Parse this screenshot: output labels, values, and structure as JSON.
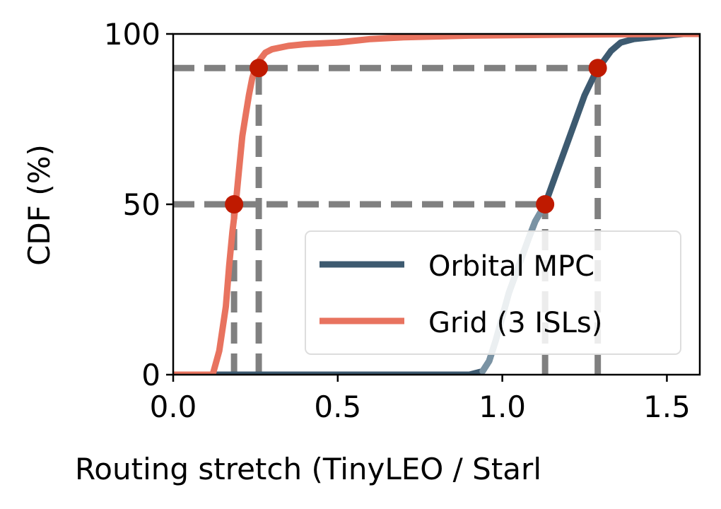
{
  "chart_data": {
    "type": "line",
    "title": "",
    "xlabel": "Routing stretch (TinyLEO / Starl",
    "ylabel": "CDF (%)",
    "xlim": [
      0.0,
      1.6
    ],
    "ylim": [
      0,
      100
    ],
    "xticks": [
      0.0,
      0.5,
      1.0,
      1.5
    ],
    "xtick_labels": [
      "0.0",
      "0.5",
      "1.0",
      "1.5"
    ],
    "yticks": [
      0,
      50,
      100
    ],
    "ytick_labels": [
      "0",
      "50",
      "100"
    ],
    "grid": false,
    "legend_position": "lower-right",
    "series": [
      {
        "name": "Orbital MPC",
        "color": "#3d5a70",
        "lower_color": "#7a93a4",
        "x": [
          0.0,
          0.9,
          0.94,
          0.96,
          0.98,
          1.0,
          1.02,
          1.05,
          1.08,
          1.1,
          1.13,
          1.16,
          1.19,
          1.22,
          1.25,
          1.28,
          1.3,
          1.33,
          1.36,
          1.4,
          1.45,
          1.5,
          1.55,
          1.6
        ],
        "y": [
          0,
          0,
          1,
          4,
          10,
          17,
          24,
          32,
          40,
          45,
          50,
          58,
          66,
          74,
          82,
          88,
          91,
          95,
          97.5,
          98.5,
          99,
          99.5,
          100,
          100
        ]
      },
      {
        "name": "Grid (3 ISLs)",
        "color": "#e8735f",
        "x": [
          0.0,
          0.12,
          0.14,
          0.16,
          0.17,
          0.18,
          0.19,
          0.2,
          0.21,
          0.22,
          0.23,
          0.24,
          0.25,
          0.26,
          0.28,
          0.3,
          0.35,
          0.4,
          0.5,
          0.6,
          0.7,
          0.9,
          1.2,
          1.5,
          1.6
        ],
        "y": [
          0,
          0,
          7,
          20,
          32,
          42,
          50,
          60,
          70,
          76,
          82,
          87,
          90,
          92,
          94.5,
          95.5,
          96.5,
          97,
          97.5,
          98.5,
          99,
          99.5,
          99.8,
          100,
          100
        ]
      }
    ],
    "reference_lines": [
      {
        "type": "horizontal",
        "y": 50,
        "x_end": 1.13,
        "color": "#808080",
        "style": "dashed"
      },
      {
        "type": "horizontal",
        "y": 90,
        "x_end": 1.29,
        "color": "#808080",
        "style": "dashed"
      },
      {
        "type": "vertical",
        "x": 0.185,
        "y_end": 50,
        "color": "#808080",
        "style": "dashed"
      },
      {
        "type": "vertical",
        "x": 0.26,
        "y_end": 90,
        "color": "#808080",
        "style": "dashed"
      },
      {
        "type": "vertical",
        "x": 1.13,
        "y_end": 50,
        "color": "#808080",
        "style": "dashed"
      },
      {
        "type": "vertical",
        "x": 1.29,
        "y_end": 90,
        "color": "#808080",
        "style": "dashed"
      }
    ],
    "markers": [
      {
        "x": 0.185,
        "y": 50,
        "color": "#bf1a00"
      },
      {
        "x": 0.26,
        "y": 90,
        "color": "#bf1a00"
      },
      {
        "x": 1.13,
        "y": 50,
        "color": "#bf1a00"
      },
      {
        "x": 1.29,
        "y": 90,
        "color": "#bf1a00"
      }
    ]
  }
}
